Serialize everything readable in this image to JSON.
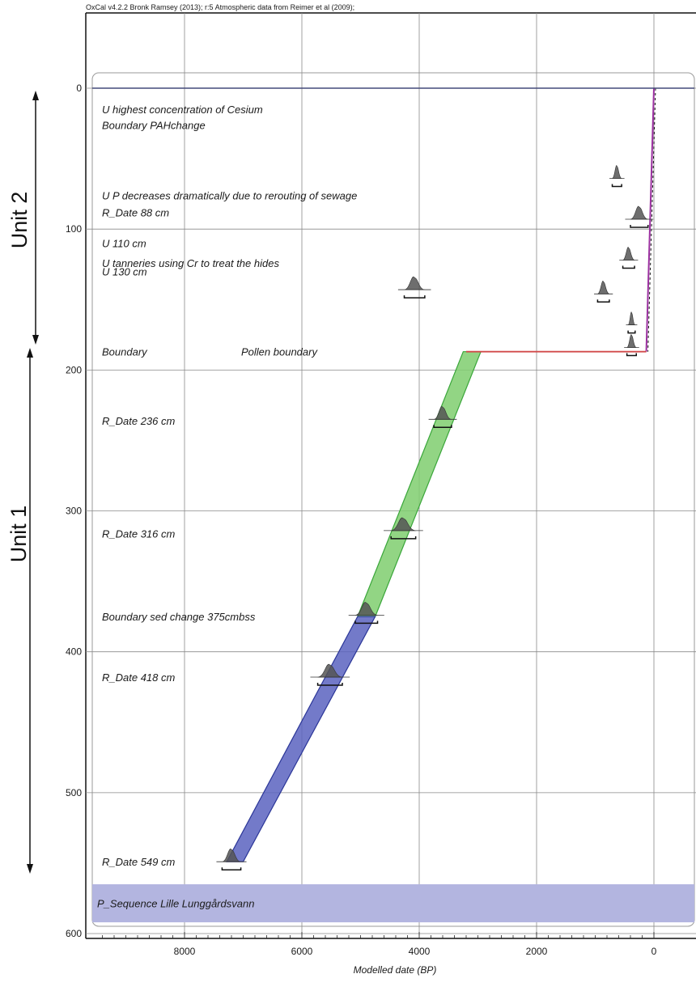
{
  "header_note": "OxCal v4.2.2 Bronk Ramsey (2013); r:5 Atmospheric data from Reimer et al (2009);",
  "colors": {
    "upper_line": "#9b30a0",
    "pollen_line": "#d24a4a",
    "green_fill": "#7fce6e",
    "green_edge": "#3aa63a",
    "blue_fill": "#5b63c0",
    "blue_edge": "#2a3597",
    "sequence_band": "#b3b5e0",
    "distribution": "#555555",
    "grid": "#8a8a8a"
  },
  "chart_data": {
    "type": "age-depth model",
    "xlabel": "Modelled date (BP)",
    "ylabel": "",
    "x_reversed": true,
    "xlim": [
      9600,
      -60
    ],
    "ylim": [
      -60,
      602
    ],
    "grid": true,
    "x_ticks": [
      8000,
      6000,
      4000,
      2000,
      0
    ],
    "y_ticks": [
      0,
      100,
      200,
      300,
      400,
      500,
      600
    ],
    "sequence_label": "P_Sequence Lille Lunggårdsvann",
    "sequence_depth_range": [
      565,
      592
    ],
    "rows": [
      {
        "label": "U highest concentration of Cesium",
        "depth": 15
      },
      {
        "label": "Boundary PAHchange",
        "depth": 26
      },
      {
        "label": "U P decreases dramatically due to rerouting of sewage",
        "depth": 76
      },
      {
        "label": "R_Date 88 cm",
        "depth": 88
      },
      {
        "label": "U 110 cm",
        "depth": 110
      },
      {
        "label": "U tanneries using Cr to treat the hides",
        "depth": 124
      },
      {
        "label": "U 130 cm",
        "depth": 130
      },
      {
        "label": "Boundary",
        "depth": 187
      },
      {
        "label": "Pollen boundary",
        "depth": 187
      },
      {
        "label": "R_Date 236 cm",
        "depth": 236
      },
      {
        "label": "R_Date 316 cm",
        "depth": 316
      },
      {
        "label": "Boundary sed change 375cmbss",
        "depth": 375
      },
      {
        "label": "R_Date 418 cm",
        "depth": 418
      },
      {
        "label": "R_Date 549 cm",
        "depth": 549
      }
    ],
    "upper_model_line": [
      {
        "depth": 0,
        "date": 0
      },
      {
        "depth": 187,
        "date": 130
      }
    ],
    "pollen_line": {
      "depth": 187,
      "date_from": 3200,
      "date_to": 130
    },
    "green_envelope": {
      "depths": [
        187,
        375
      ],
      "older_edge": [
        3250,
        5050
      ],
      "younger_edge": [
        2950,
        4750
      ]
    },
    "blue_envelope": {
      "depths": [
        375,
        549
      ],
      "older_edge": [
        5050,
        7280
      ],
      "younger_edge": [
        4750,
        7000
      ]
    },
    "distributions": [
      {
        "date": 4080,
        "depth": 143,
        "width": 350
      },
      {
        "date": 630,
        "depth": 64,
        "width": 160
      },
      {
        "date": 250,
        "depth": 93,
        "width": 300
      },
      {
        "date": 430,
        "depth": 122,
        "width": 200
      },
      {
        "date": 860,
        "depth": 146,
        "width": 200
      },
      {
        "date": 380,
        "depth": 168,
        "width": 120
      },
      {
        "date": 380,
        "depth": 184,
        "width": 160
      },
      {
        "date": 3600,
        "depth": 235,
        "width": 300
      },
      {
        "date": 4270,
        "depth": 314,
        "width": 420
      },
      {
        "date": 4900,
        "depth": 374,
        "width": 380
      },
      {
        "date": 5520,
        "depth": 418,
        "width": 420
      },
      {
        "date": 7200,
        "depth": 549,
        "width": 320
      }
    ]
  },
  "annotations": {
    "unit2": "Unit 2",
    "unit1": "Unit 1"
  }
}
